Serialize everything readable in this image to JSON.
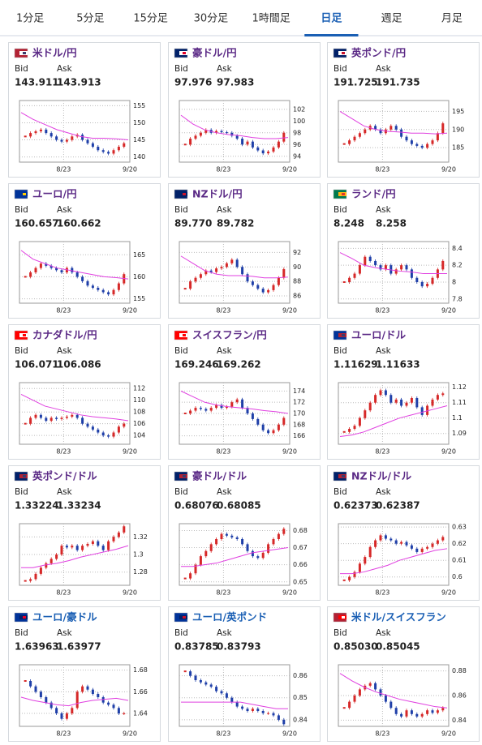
{
  "tabs": [
    "1分足",
    "5分足",
    "15分足",
    "30分足",
    "1時間足",
    "日足",
    "週足",
    "月足"
  ],
  "active_tab": 5,
  "cards": [
    {
      "name": "米ドル/円",
      "name_color": "#5b2a86",
      "flag": [
        "#b22234",
        "#ffffff",
        "#3c3b6e"
      ],
      "bid_label": "Bid",
      "ask_label": "Ask",
      "bid": "143.911",
      "ask": "143.913",
      "x_labels": [
        "8/23",
        "9/20"
      ],
      "ylim": [
        138.5,
        156.5
      ],
      "yticks": [
        140,
        145,
        150,
        155
      ],
      "closes": [
        146,
        147,
        147.5,
        148,
        147,
        146,
        145,
        144.5,
        145,
        146,
        146.5,
        145,
        144,
        143,
        142,
        141.5,
        141,
        142,
        143,
        144
      ],
      "ma": [
        153,
        151,
        149.5,
        148,
        147,
        146,
        145.5,
        145.5,
        145.3,
        145
      ]
    },
    {
      "name": "豪ドル/円",
      "name_color": "#5b2a86",
      "flag": [
        "#012169",
        "#ffffff",
        "#e4002b"
      ],
      "bid_label": "Bid",
      "ask_label": "Ask",
      "bid": "97.976",
      "ask": "97.983",
      "x_labels": [
        "8/23",
        "9/20"
      ],
      "ylim": [
        93,
        103.5
      ],
      "yticks": [
        94,
        96,
        98,
        100,
        102
      ],
      "closes": [
        96,
        97,
        97.5,
        98,
        98.5,
        98,
        98.3,
        98.1,
        98,
        97.5,
        97,
        96,
        96.5,
        95.5,
        95,
        94.5,
        94.8,
        95.5,
        96.5,
        98
      ],
      "ma": [
        101,
        99.5,
        98.5,
        98,
        97.7,
        97.5,
        97.2,
        97,
        97,
        97.2
      ]
    },
    {
      "name": "英ポンド/円",
      "name_color": "#5b2a86",
      "flag": [
        "#012169",
        "#ffffff",
        "#c8102e"
      ],
      "bid_label": "Bid",
      "ask_label": "Ask",
      "bid": "191.725",
      "ask": "191.735",
      "x_labels": [
        "8/23",
        "9/20"
      ],
      "ylim": [
        181,
        198
      ],
      "yticks": [
        185,
        190,
        195
      ],
      "closes": [
        186,
        187,
        188,
        189,
        190,
        191,
        190,
        189,
        190,
        191,
        190,
        188,
        187,
        186,
        185.5,
        185,
        186,
        187,
        189,
        191.7
      ],
      "ma": [
        195,
        193,
        191,
        190,
        189.5,
        189.3,
        189,
        189,
        188.8,
        189
      ]
    },
    {
      "name": "ユーロ/円",
      "name_color": "#5b2a86",
      "flag": [
        "#003399",
        "#003399",
        "#ffcc00"
      ],
      "bid_label": "Bid",
      "ask_label": "Ask",
      "bid": "160.657",
      "ask": "160.662",
      "x_labels": [
        "8/23",
        "9/20"
      ],
      "ylim": [
        154,
        168
      ],
      "yticks": [
        155,
        160,
        165
      ],
      "closes": [
        160,
        161,
        162,
        163,
        162.5,
        162,
        161.5,
        161,
        162,
        161,
        160,
        159,
        158,
        157.5,
        157,
        156.5,
        156,
        157,
        158.5,
        160.6
      ],
      "ma": [
        166,
        164,
        163,
        162,
        161.5,
        161,
        160.5,
        160,
        159.8,
        159.5
      ]
    },
    {
      "name": "NZドル/円",
      "name_color": "#5b2a86",
      "flag": [
        "#012169",
        "#012169",
        "#cc142b"
      ],
      "bid_label": "Bid",
      "ask_label": "Ask",
      "bid": "89.770",
      "ask": "89.782",
      "x_labels": [
        "8/23",
        "9/20"
      ],
      "ylim": [
        85,
        93.5
      ],
      "yticks": [
        86,
        88,
        90,
        92
      ],
      "closes": [
        87,
        88,
        88.5,
        89,
        89.5,
        89.3,
        89.8,
        90,
        90.5,
        91,
        90,
        89,
        88,
        87.5,
        87,
        86.5,
        86.8,
        87.5,
        88.5,
        89.7
      ],
      "ma": [
        91.5,
        90.5,
        89.5,
        89,
        88.8,
        88.8,
        88.7,
        88.5,
        88.5,
        88.6
      ]
    },
    {
      "name": "ランド/円",
      "name_color": "#5b2a86",
      "flag": [
        "#007a4d",
        "#ffb612",
        "#de3831"
      ],
      "bid_label": "Bid",
      "ask_label": "Ask",
      "bid": "8.248",
      "ask": "8.258",
      "x_labels": [
        "8/23",
        "9/20"
      ],
      "ylim": [
        7.75,
        8.48
      ],
      "yticks": [
        7.8,
        8,
        8.2,
        8.4
      ],
      "closes": [
        8.0,
        8.05,
        8.1,
        8.2,
        8.3,
        8.25,
        8.2,
        8.15,
        8.2,
        8.1,
        8.15,
        8.2,
        8.15,
        8.05,
        8.0,
        7.95,
        7.98,
        8.05,
        8.15,
        8.25
      ],
      "ma": [
        8.35,
        8.28,
        8.2,
        8.17,
        8.15,
        8.13,
        8.12,
        8.1,
        8.1,
        8.1
      ]
    },
    {
      "name": "カナダドル/円",
      "name_color": "#5b2a86",
      "flag": [
        "#ff0000",
        "#ffffff",
        "#ff0000"
      ],
      "bid_label": "Bid",
      "ask_label": "Ask",
      "bid": "106.071",
      "ask": "106.086",
      "x_labels": [
        "8/23",
        "9/20"
      ],
      "ylim": [
        102.5,
        113
      ],
      "yticks": [
        104,
        106,
        108,
        110,
        112
      ],
      "closes": [
        106,
        107,
        107.5,
        107,
        106.5,
        107,
        106.8,
        107,
        107.2,
        107.5,
        107,
        106,
        105.5,
        105,
        104.5,
        104,
        103.8,
        104.5,
        105.5,
        106
      ],
      "ma": [
        111,
        110,
        109,
        108.5,
        108,
        107.5,
        107.2,
        107,
        106.8,
        106.5
      ]
    },
    {
      "name": "スイスフラン/円",
      "name_color": "#5b2a86",
      "flag": [
        "#ff0000",
        "#ffffff",
        "#ff0000"
      ],
      "bid_label": "Bid",
      "ask_label": "Ask",
      "bid": "169.246",
      "ask": "169.262",
      "x_labels": [
        "8/23",
        "9/20"
      ],
      "ylim": [
        164.5,
        175.5
      ],
      "yticks": [
        166,
        168,
        170,
        172,
        174
      ],
      "closes": [
        170,
        170.5,
        171,
        170.8,
        170.5,
        171,
        171.5,
        171,
        171.2,
        172,
        172.5,
        171,
        170,
        169,
        168,
        167,
        166.5,
        167,
        168,
        169.2
      ],
      "ma": [
        174,
        173,
        172,
        171.5,
        171.2,
        171,
        170.8,
        170.5,
        170.3,
        170
      ]
    },
    {
      "name": "ユーロ/ドル",
      "name_color": "#5b2a86",
      "flag": [
        "#003399",
        "#b22234",
        "#3c3b6e"
      ],
      "bid_label": "Bid",
      "ask_label": "Ask",
      "bid": "1.11629",
      "ask": "1.11633",
      "x_labels": [
        "8/23",
        "9/20"
      ],
      "ylim": [
        1.083,
        1.123
      ],
      "yticks": [
        1.09,
        1.1,
        1.11,
        1.12
      ],
      "closes": [
        1.091,
        1.093,
        1.095,
        1.1,
        1.105,
        1.11,
        1.115,
        1.118,
        1.115,
        1.11,
        1.112,
        1.108,
        1.11,
        1.113,
        1.107,
        1.102,
        1.108,
        1.112,
        1.115,
        1.116
      ],
      "ma": [
        1.088,
        1.089,
        1.091,
        1.094,
        1.097,
        1.1,
        1.102,
        1.104,
        1.106,
        1.108
      ]
    },
    {
      "name": "英ポンド/ドル",
      "name_color": "#5b2a86",
      "flag": [
        "#012169",
        "#b22234",
        "#3c3b6e"
      ],
      "bid_label": "Bid",
      "ask_label": "Ask",
      "bid": "1.33224",
      "ask": "1.33234",
      "x_labels": [
        "8/23",
        "9/20"
      ],
      "ylim": [
        1.265,
        1.335
      ],
      "yticks": [
        1.28,
        1.3,
        1.32
      ],
      "closes": [
        1.27,
        1.272,
        1.278,
        1.285,
        1.29,
        1.295,
        1.3,
        1.31,
        1.308,
        1.31,
        1.305,
        1.31,
        1.312,
        1.315,
        1.31,
        1.305,
        1.315,
        1.32,
        1.325,
        1.332
      ],
      "ma": [
        1.285,
        1.285,
        1.288,
        1.29,
        1.293,
        1.297,
        1.3,
        1.303,
        1.306,
        1.31
      ]
    },
    {
      "name": "豪ドル/ドル",
      "name_color": "#5b2a86",
      "flag": [
        "#012169",
        "#b22234",
        "#3c3b6e"
      ],
      "bid_label": "Bid",
      "ask_label": "Ask",
      "bid": "0.68076",
      "ask": "0.68085",
      "x_labels": [
        "8/23",
        "9/20"
      ],
      "ylim": [
        0.648,
        0.684
      ],
      "yticks": [
        0.65,
        0.66,
        0.67,
        0.68
      ],
      "closes": [
        0.652,
        0.655,
        0.66,
        0.665,
        0.668,
        0.672,
        0.675,
        0.678,
        0.677,
        0.676,
        0.675,
        0.672,
        0.668,
        0.665,
        0.664,
        0.667,
        0.672,
        0.675,
        0.678,
        0.681
      ],
      "ma": [
        0.659,
        0.659,
        0.66,
        0.661,
        0.663,
        0.665,
        0.667,
        0.668,
        0.669,
        0.67
      ]
    },
    {
      "name": "NZドル/ドル",
      "name_color": "#5b2a86",
      "flag": [
        "#012169",
        "#b22234",
        "#3c3b6e"
      ],
      "bid_label": "Bid",
      "ask_label": "Ask",
      "bid": "0.62373",
      "ask": "0.62387",
      "x_labels": [
        "8/23",
        "9/20"
      ],
      "ylim": [
        0.595,
        0.632
      ],
      "yticks": [
        0.6,
        0.61,
        0.62,
        0.63
      ],
      "closes": [
        0.598,
        0.6,
        0.603,
        0.608,
        0.612,
        0.618,
        0.622,
        0.625,
        0.623,
        0.622,
        0.62,
        0.621,
        0.619,
        0.617,
        0.615,
        0.617,
        0.618,
        0.62,
        0.622,
        0.624
      ],
      "ma": [
        0.602,
        0.602,
        0.603,
        0.605,
        0.607,
        0.61,
        0.612,
        0.614,
        0.616,
        0.617
      ]
    },
    {
      "name": "ユーロ/豪ドル",
      "name_color": "#1a5fb4",
      "flag": [
        "#003399",
        "#012169",
        "#e4002b"
      ],
      "bid_label": "Bid",
      "ask_label": "Ask",
      "bid": "1.63963",
      "ask": "1.63977",
      "x_labels": [
        "8/23",
        "9/20"
      ],
      "ylim": [
        1.628,
        1.685
      ],
      "yticks": [
        1.64,
        1.66,
        1.68
      ],
      "closes": [
        1.67,
        1.665,
        1.66,
        1.655,
        1.65,
        1.645,
        1.64,
        1.635,
        1.64,
        1.645,
        1.66,
        1.665,
        1.662,
        1.658,
        1.655,
        1.65,
        1.648,
        1.645,
        1.64,
        1.64
      ],
      "ma": [
        1.655,
        1.652,
        1.65,
        1.648,
        1.647,
        1.65,
        1.652,
        1.653,
        1.654,
        1.652
      ]
    },
    {
      "name": "ユーロ/英ポンド",
      "name_color": "#1a5fb4",
      "flag": [
        "#003399",
        "#012169",
        "#c8102e"
      ],
      "bid_label": "Bid",
      "ask_label": "Ask",
      "bid": "0.83785",
      "ask": "0.83793",
      "x_labels": [
        "8/23",
        "9/20"
      ],
      "ylim": [
        0.837,
        0.865
      ],
      "yticks": [
        0.84,
        0.85,
        0.86
      ],
      "closes": [
        0.862,
        0.86,
        0.858,
        0.857,
        0.856,
        0.855,
        0.853,
        0.852,
        0.85,
        0.848,
        0.846,
        0.845,
        0.844,
        0.845,
        0.844,
        0.843,
        0.843,
        0.842,
        0.84,
        0.838
      ],
      "ma": [
        0.848,
        0.848,
        0.848,
        0.848,
        0.848,
        0.848,
        0.847,
        0.846,
        0.845,
        0.845
      ]
    },
    {
      "name": "米ドル/スイスフラン",
      "name_color": "#1a5fb4",
      "flag": [
        "#b22234",
        "#ff0000",
        "#ffffff"
      ],
      "bid_label": "Bid",
      "ask_label": "Ask",
      "bid": "0.85030",
      "ask": "0.85045",
      "x_labels": [
        "8/23",
        "9/20"
      ],
      "ylim": [
        0.835,
        0.885
      ],
      "yticks": [
        0.84,
        0.86,
        0.88
      ],
      "closes": [
        0.85,
        0.855,
        0.86,
        0.865,
        0.868,
        0.87,
        0.865,
        0.86,
        0.855,
        0.85,
        0.845,
        0.843,
        0.848,
        0.845,
        0.843,
        0.845,
        0.848,
        0.846,
        0.848,
        0.85
      ],
      "ma": [
        0.878,
        0.872,
        0.867,
        0.863,
        0.86,
        0.857,
        0.855,
        0.853,
        0.851,
        0.85
      ]
    }
  ]
}
